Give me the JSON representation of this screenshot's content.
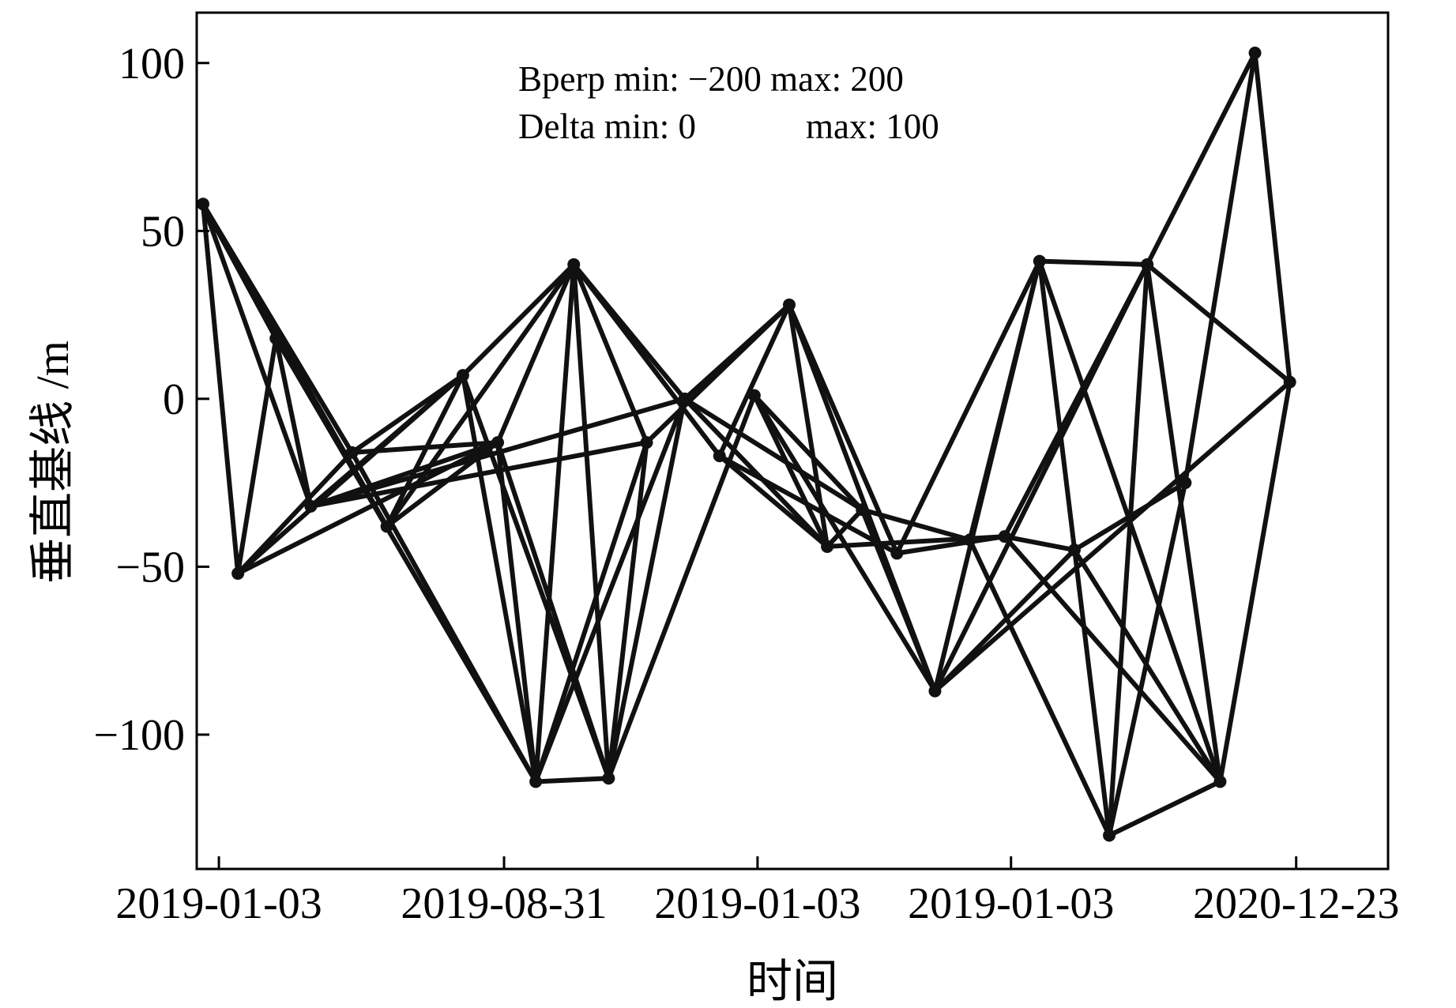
{
  "chart_data": {
    "type": "line",
    "title": "",
    "xlabel": "时间",
    "ylabel": "垂直基线 /m",
    "ylim": [
      -140,
      115
    ],
    "xlim": [
      -0.7,
      36.9
    ],
    "yticks": [
      100,
      50,
      0,
      -50,
      -100
    ],
    "ytick_labels": [
      "100",
      "50",
      "0",
      "−50",
      "−100"
    ],
    "xticks": [
      0,
      9,
      17,
      25,
      34
    ],
    "xtick_labels": [
      "2019-01-03",
      "2019-08-31",
      "2019-01-03",
      "2019-01-03",
      "2020-12-23"
    ],
    "annotations": {
      "line1": "Bperp min: −200 max: 200",
      "line2_a": "Delta  min: 0",
      "line2_b": "max: 100"
    },
    "line_color": "#111111",
    "nodes": [
      {
        "id": "A",
        "x": -0.5,
        "y": 58
      },
      {
        "id": "B",
        "x": 0.6,
        "y": -52
      },
      {
        "id": "C",
        "x": 1.8,
        "y": 18
      },
      {
        "id": "D",
        "x": 2.9,
        "y": -32
      },
      {
        "id": "E",
        "x": 4.2,
        "y": -16
      },
      {
        "id": "F",
        "x": 5.3,
        "y": -38
      },
      {
        "id": "G",
        "x": 7.7,
        "y": 7
      },
      {
        "id": "H",
        "x": 8.8,
        "y": -13
      },
      {
        "id": "I",
        "x": 10.0,
        "y": -114
      },
      {
        "id": "J",
        "x": 11.2,
        "y": 40
      },
      {
        "id": "K",
        "x": 12.3,
        "y": -113
      },
      {
        "id": "L",
        "x": 13.5,
        "y": -13
      },
      {
        "id": "M",
        "x": 14.7,
        "y": 0
      },
      {
        "id": "N",
        "x": 15.8,
        "y": -17
      },
      {
        "id": "O",
        "x": 16.9,
        "y": 1
      },
      {
        "id": "P",
        "x": 18.0,
        "y": 28
      },
      {
        "id": "Q",
        "x": 19.2,
        "y": -44
      },
      {
        "id": "R",
        "x": 20.3,
        "y": -33
      },
      {
        "id": "S",
        "x": 21.4,
        "y": -46
      },
      {
        "id": "T",
        "x": 22.6,
        "y": -87
      },
      {
        "id": "U",
        "x": 23.7,
        "y": -42
      },
      {
        "id": "V",
        "x": 24.8,
        "y": -41
      },
      {
        "id": "W",
        "x": 25.9,
        "y": 41
      },
      {
        "id": "X",
        "x": 27.0,
        "y": -45
      },
      {
        "id": "Y",
        "x": 28.1,
        "y": -130
      },
      {
        "id": "Z",
        "x": 29.3,
        "y": 40
      },
      {
        "id": "AA",
        "x": 30.5,
        "y": -25
      },
      {
        "id": "AB",
        "x": 31.6,
        "y": -114
      },
      {
        "id": "AC",
        "x": 32.7,
        "y": 103
      },
      {
        "id": "AD",
        "x": 33.8,
        "y": 5
      }
    ],
    "edges": [
      [
        "A",
        "B"
      ],
      [
        "A",
        "C"
      ],
      [
        "A",
        "D"
      ],
      [
        "A",
        "F"
      ],
      [
        "A",
        "E"
      ],
      [
        "B",
        "C"
      ],
      [
        "B",
        "E"
      ],
      [
        "B",
        "G"
      ],
      [
        "B",
        "H"
      ],
      [
        "C",
        "D"
      ],
      [
        "C",
        "F"
      ],
      [
        "C",
        "I"
      ],
      [
        "D",
        "G"
      ],
      [
        "D",
        "H"
      ],
      [
        "D",
        "L"
      ],
      [
        "D",
        "M"
      ],
      [
        "E",
        "G"
      ],
      [
        "E",
        "H"
      ],
      [
        "E",
        "I"
      ],
      [
        "F",
        "G"
      ],
      [
        "F",
        "J"
      ],
      [
        "F",
        "H"
      ],
      [
        "G",
        "I"
      ],
      [
        "G",
        "J"
      ],
      [
        "G",
        "K"
      ],
      [
        "H",
        "I"
      ],
      [
        "H",
        "J"
      ],
      [
        "H",
        "K"
      ],
      [
        "I",
        "J"
      ],
      [
        "I",
        "K"
      ],
      [
        "I",
        "L"
      ],
      [
        "I",
        "M"
      ],
      [
        "J",
        "K"
      ],
      [
        "J",
        "M"
      ],
      [
        "J",
        "N"
      ],
      [
        "J",
        "L"
      ],
      [
        "K",
        "L"
      ],
      [
        "K",
        "M"
      ],
      [
        "K",
        "O"
      ],
      [
        "L",
        "P"
      ],
      [
        "M",
        "P"
      ],
      [
        "M",
        "Q"
      ],
      [
        "M",
        "R"
      ],
      [
        "N",
        "P"
      ],
      [
        "N",
        "Q"
      ],
      [
        "N",
        "S"
      ],
      [
        "O",
        "Q"
      ],
      [
        "O",
        "R"
      ],
      [
        "O",
        "T"
      ],
      [
        "P",
        "Q"
      ],
      [
        "P",
        "S"
      ],
      [
        "P",
        "T"
      ],
      [
        "Q",
        "R"
      ],
      [
        "Q",
        "V"
      ],
      [
        "R",
        "T"
      ],
      [
        "R",
        "U"
      ],
      [
        "S",
        "W"
      ],
      [
        "S",
        "V"
      ],
      [
        "T",
        "W"
      ],
      [
        "T",
        "Z"
      ],
      [
        "T",
        "AD"
      ],
      [
        "T",
        "X"
      ],
      [
        "U",
        "W"
      ],
      [
        "U",
        "Y"
      ],
      [
        "V",
        "X"
      ],
      [
        "V",
        "Z"
      ],
      [
        "V",
        "AB"
      ],
      [
        "W",
        "Z"
      ],
      [
        "W",
        "Y"
      ],
      [
        "W",
        "AB"
      ],
      [
        "X",
        "AB"
      ],
      [
        "X",
        "AA"
      ],
      [
        "Y",
        "Z"
      ],
      [
        "Y",
        "AB"
      ],
      [
        "Y",
        "AA"
      ],
      [
        "Z",
        "AB"
      ],
      [
        "Z",
        "AD"
      ],
      [
        "Z",
        "AC"
      ],
      [
        "AA",
        "AC"
      ],
      [
        "AB",
        "AD"
      ],
      [
        "AC",
        "AD"
      ]
    ]
  }
}
